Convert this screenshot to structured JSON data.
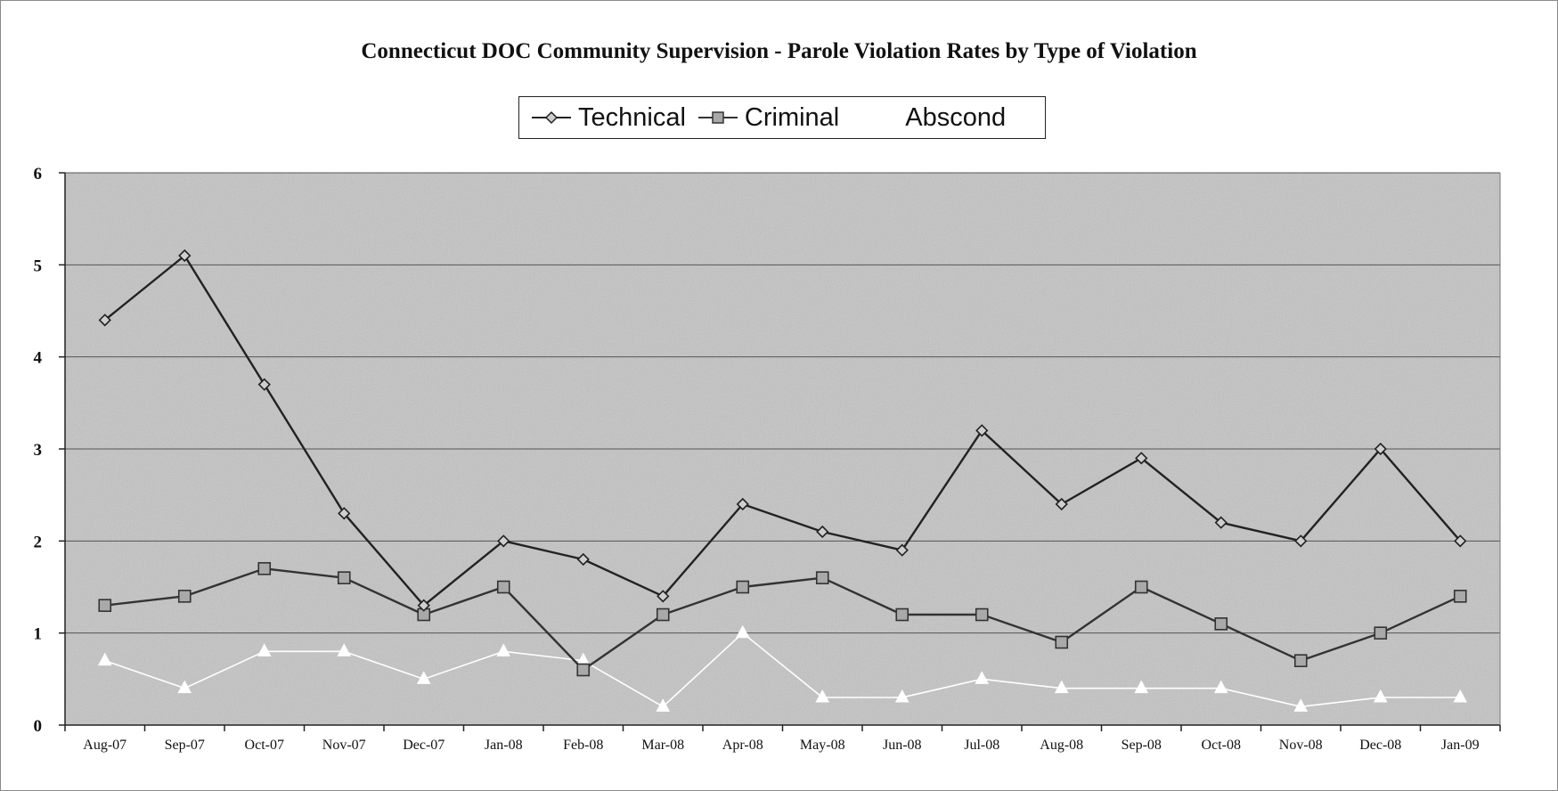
{
  "chart_data": {
    "type": "line",
    "title": "Connecticut DOC Community Supervision -  Parole Violation Rates by Type of Violation",
    "xlabel": "",
    "ylabel": "",
    "ylim": [
      0,
      6
    ],
    "yticks": [
      "0",
      "1",
      "2",
      "3",
      "4",
      "5",
      "6"
    ],
    "grid": true,
    "legend_position": "top-center",
    "categories": [
      "Aug-07",
      "Sep-07",
      "Oct-07",
      "Nov-07",
      "Dec-07",
      "Jan-08",
      "Feb-08",
      "Mar-08",
      "Apr-08",
      "May-08",
      "Jun-08",
      "Jul-08",
      "Aug-08",
      "Sep-08",
      "Oct-08",
      "Nov-08",
      "Dec-08",
      "Jan-09"
    ],
    "series": [
      {
        "name": "Technical",
        "marker": "diamond",
        "color": "#222222",
        "values": [
          4.4,
          5.1,
          3.7,
          2.3,
          1.3,
          2.0,
          1.8,
          1.4,
          2.4,
          2.1,
          1.9,
          3.2,
          2.4,
          2.9,
          2.2,
          2.0,
          3.0,
          2.0
        ]
      },
      {
        "name": "Criminal",
        "marker": "square",
        "color": "#333333",
        "values": [
          1.3,
          1.4,
          1.7,
          1.6,
          1.2,
          1.5,
          0.6,
          1.2,
          1.5,
          1.6,
          1.2,
          1.2,
          0.9,
          1.5,
          1.1,
          0.7,
          1.0,
          1.4
        ]
      },
      {
        "name": "Abscond",
        "marker": "triangle",
        "color": "#ffffff",
        "values": [
          0.7,
          0.4,
          0.8,
          0.8,
          0.5,
          0.8,
          0.7,
          0.2,
          1.0,
          0.3,
          0.3,
          0.5,
          0.4,
          0.4,
          0.4,
          0.2,
          0.3,
          0.3
        ]
      }
    ],
    "plot_background": "#c4c4c4"
  }
}
